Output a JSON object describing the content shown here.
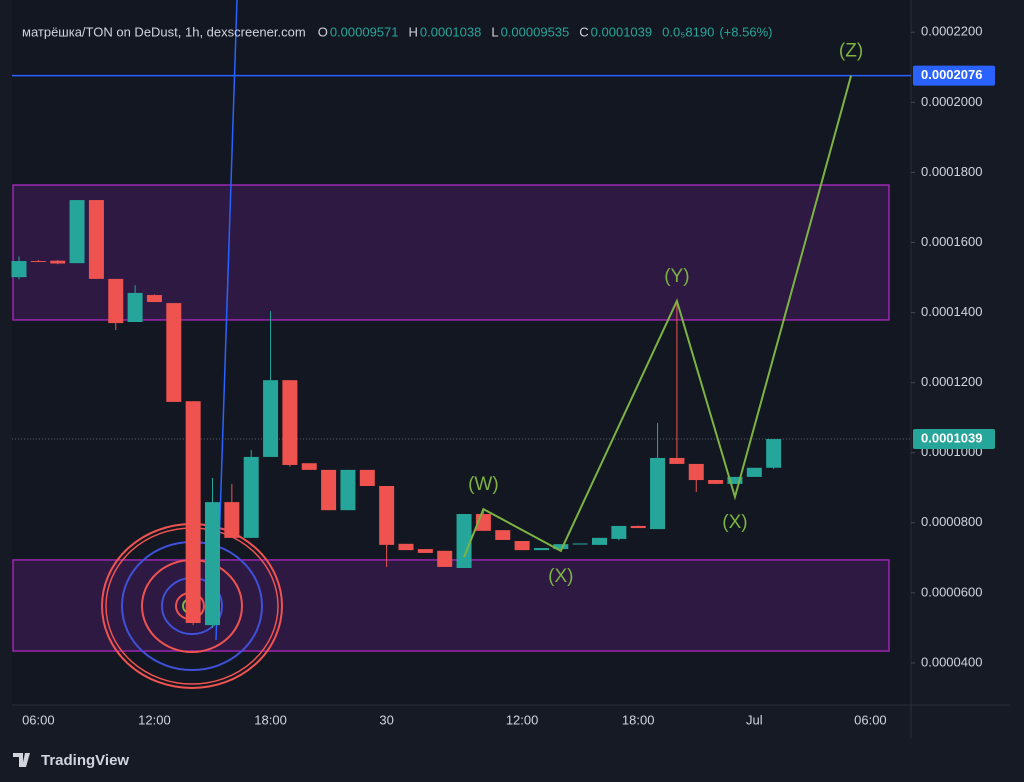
{
  "chart_data": {
    "type": "candlestick",
    "title": "матрёшка/TON on DeDust, 1h, dexscreener.com",
    "ohlc_legend": [
      {
        "key": "O",
        "value": 9.571e-05
      },
      {
        "key": "H",
        "value": 0.0001038
      },
      {
        "key": "L",
        "value": 9.535e-05
      },
      {
        "key": "C",
        "value": 0.0001039
      }
    ],
    "change": "0.0₅8190",
    "change_pct": "(+8.56%)",
    "categories": [
      null,
      "06:00",
      null,
      null,
      null,
      null,
      null,
      "12:00",
      null,
      null,
      null,
      null,
      null,
      "18:00",
      null,
      null,
      null,
      null,
      null,
      "30",
      null,
      null,
      null,
      null,
      null,
      null,
      "12:00",
      null,
      null,
      null,
      null,
      null,
      "18:00",
      null,
      null,
      null,
      null,
      null,
      "Jul",
      null,
      null,
      null,
      null,
      null,
      "06:00",
      null
    ],
    "open": [
      0.0001501,
      0.0001547,
      0.0001548,
      0.0001541,
      0.0001721,
      0.0001496,
      0.0001373,
      0.000145,
      0.0001427,
      0.0001147,
      5.08e-05,
      8.59e-05,
      7.57e-05,
      9.88e-05,
      0.0001207,
      9.7e-05,
      9.51e-05,
      8.36e-05,
      9.51e-05,
      9.05e-05,
      7.4e-05,
      7.25e-05,
      7.2e-05,
      6.71e-05,
      8.25e-05,
      7.79e-05,
      7.48e-05,
      7.22e-05,
      7.25e-05,
      7.38e-05,
      7.37e-05,
      7.54e-05,
      7.91e-05,
      7.82e-05,
      9.85e-05,
      9.68e-05,
      9.22e-05,
      9.11e-05,
      9.31e-05,
      9.571e-05,
      null,
      null,
      null,
      null,
      null,
      null
    ],
    "high": [
      0.000156,
      0.000155,
      0.000155,
      0.0001721,
      0.0001721,
      0.0001496,
      0.0001478,
      0.0001452,
      0.0001427,
      0.0001147,
      9.28e-05,
      9.11e-05,
      0.0001008,
      0.0001404,
      0.0001207,
      9.7e-05,
      9.51e-05,
      9.51e-05,
      9.51e-05,
      9.05e-05,
      7.4e-05,
      7.25e-05,
      7.2e-05,
      8.25e-05,
      8.4e-05,
      7.79e-05,
      7.48e-05,
      7.28e-05,
      7.39e-05,
      7.41e-05,
      7.57e-05,
      7.91e-05,
      7.92e-05,
      0.0001085,
      0.0001436,
      9.68e-05,
      9.22e-05,
      9.31e-05,
      9.57e-05,
      0.0001038,
      null,
      null,
      null,
      null,
      null,
      null
    ],
    "low": [
      0.0001495,
      0.0001545,
      0.0001538,
      0.0001541,
      0.0001496,
      0.000135,
      0.0001373,
      0.000143,
      0.0001145,
      5.08e-05,
      5e-05,
      7.57e-05,
      7.57e-05,
      9.88e-05,
      9.6e-05,
      9.51e-05,
      8.36e-05,
      8.36e-05,
      9.05e-05,
      6.74e-05,
      7.22e-05,
      7.14e-05,
      6.74e-05,
      6.71e-05,
      7.77e-05,
      7.51e-05,
      7.22e-05,
      7.22e-05,
      7.25e-05,
      7.38e-05,
      7.37e-05,
      7.5e-05,
      7.85e-05,
      7.82e-05,
      9.68e-05,
      8.88e-05,
      9.11e-05,
      9.11e-05,
      9.31e-05,
      9.535e-05,
      null,
      null,
      null,
      null,
      null,
      null
    ],
    "close": [
      0.0001547,
      0.0001546,
      0.000154,
      0.0001721,
      0.0001496,
      0.000137,
      0.0001456,
      0.000143,
      0.0001145,
      5.14e-05,
      8.59e-05,
      7.57e-05,
      9.88e-05,
      0.0001207,
      9.65e-05,
      9.51e-05,
      8.36e-05,
      9.51e-05,
      9.05e-05,
      7.37e-05,
      7.22e-05,
      7.14e-05,
      6.74e-05,
      8.25e-05,
      7.77e-05,
      7.51e-05,
      7.22e-05,
      7.28e-05,
      7.39e-05,
      7.41e-05,
      7.57e-05,
      7.91e-05,
      7.85e-05,
      9.85e-05,
      9.68e-05,
      9.22e-05,
      9.11e-05,
      9.31e-05,
      9.57e-05,
      0.0001039,
      null,
      null,
      null,
      null,
      null,
      null
    ],
    "up_color": "#26a69a",
    "down_color": "#ef5350",
    "ylim": [
      2.8e-05,
      0.0002292
    ],
    "yticks": [
      {
        "value": 4e-05,
        "label": "0.0000400"
      },
      {
        "value": 6e-05,
        "label": "0.0000600"
      },
      {
        "value": 8e-05,
        "label": "0.0000800"
      },
      {
        "value": 0.0001,
        "label": "0.0001000"
      },
      {
        "value": 0.00012,
        "label": "0.0001200"
      },
      {
        "value": 0.00014,
        "label": "0.0001400"
      },
      {
        "value": 0.00016,
        "label": "0.0001600"
      },
      {
        "value": 0.00018,
        "label": "0.0001800"
      },
      {
        "value": 0.0002,
        "label": "0.0002000"
      },
      {
        "value": 0.00022,
        "label": "0.0002200"
      }
    ],
    "zones": [
      {
        "from": 0.0001379,
        "to": 0.0001764
      },
      {
        "from": 4.34e-05,
        "to": 6.94e-05
      }
    ],
    "horizontal_line": {
      "value": 0.0002076,
      "color": "#2962ff"
    },
    "last_price": {
      "value": 0.0001039,
      "color": "#26a69a"
    },
    "wave": {
      "color": "#7cb342",
      "x": [
        23,
        24,
        28,
        34,
        37,
        43
      ],
      "y": [
        7.02e-05,
        8.39e-05,
        7.2e-05,
        0.0001433,
        8.74e-05,
        0.0002076
      ],
      "labels": [
        null,
        "(W)",
        "(X)",
        "(Y)",
        "(X)",
        "(Z)"
      ]
    },
    "brand": "TradingView"
  }
}
